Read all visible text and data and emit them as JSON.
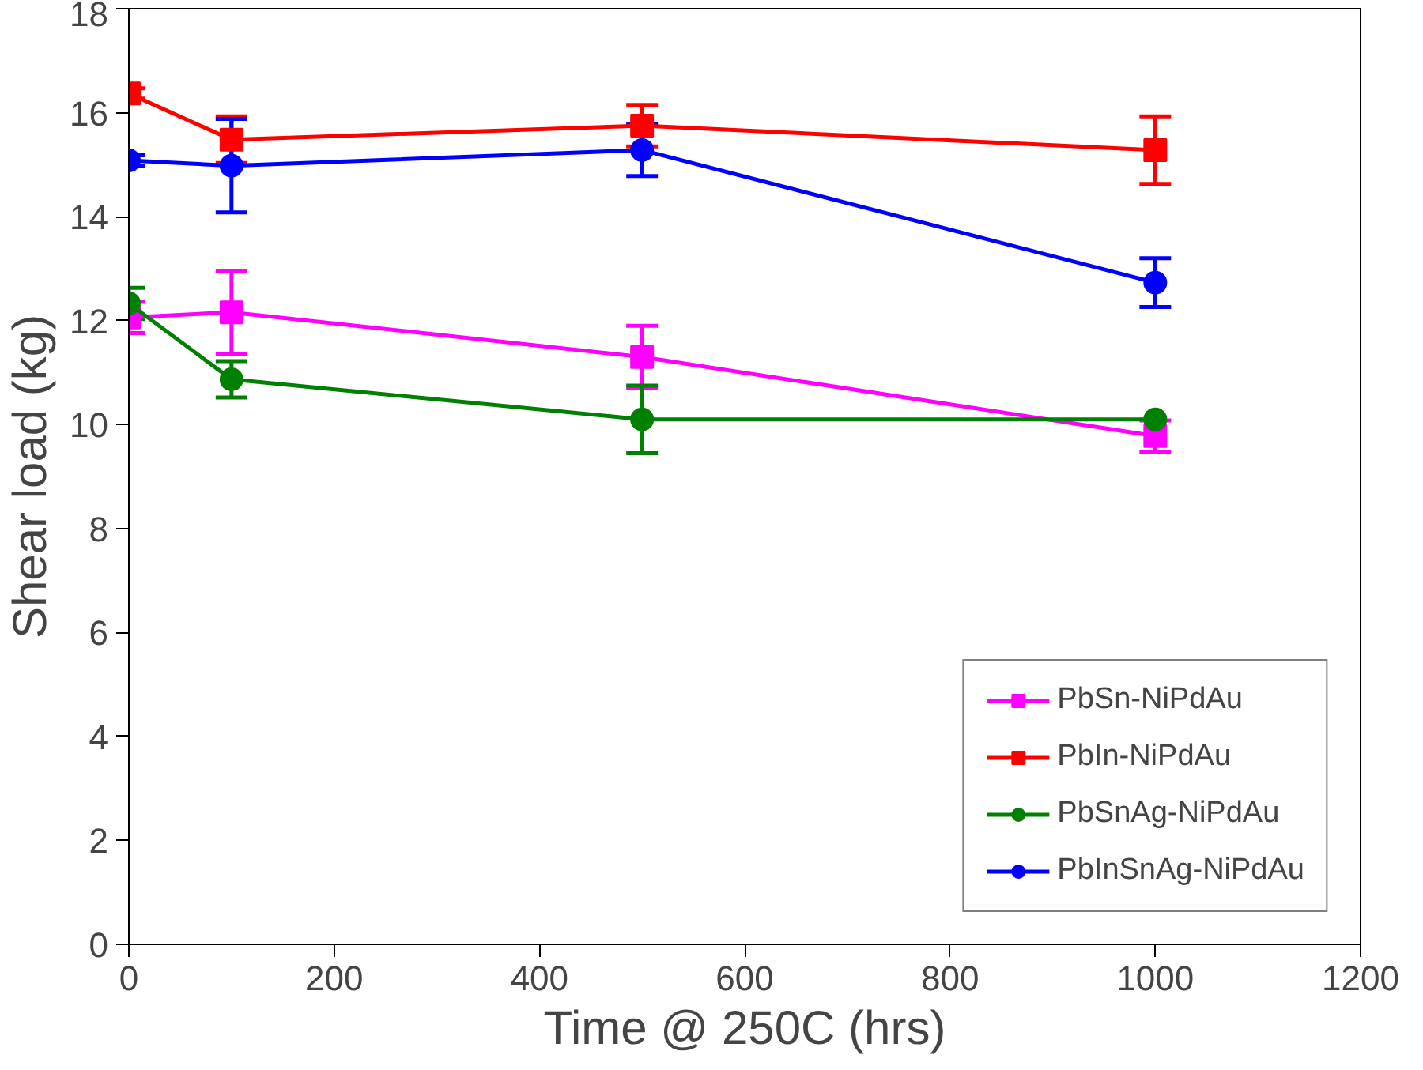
{
  "chart_data": {
    "type": "line",
    "xlabel": "Time @ 250C (hrs)",
    "ylabel": "Shear load (kg)",
    "x": [
      0,
      100,
      500,
      1000
    ],
    "xlim": [
      0,
      1200
    ],
    "xticks": [
      0,
      200,
      400,
      600,
      800,
      1000,
      1200
    ],
    "ylim": [
      0,
      18
    ],
    "yticks": [
      0,
      2,
      4,
      6,
      8,
      10,
      12,
      14,
      16,
      18
    ],
    "grid": false,
    "legend": "bottom right",
    "series": [
      {
        "name": "PbSn-NiPdAu",
        "color": "#ff00ff",
        "marker": "square",
        "values": [
          12.06,
          12.16,
          11.3,
          9.78
        ],
        "errors": [
          0.3,
          0.8,
          0.6,
          0.3
        ]
      },
      {
        "name": "PbIn-NiPdAu",
        "color": "#ff0000",
        "marker": "square",
        "values": [
          16.37,
          15.48,
          15.75,
          15.28
        ],
        "errors": [
          0.1,
          0.45,
          0.4,
          0.65
        ]
      },
      {
        "name": "PbSnAg-NiPdAu",
        "color": "#008000",
        "marker": "circle",
        "values": [
          12.33,
          10.87,
          10.1,
          10.1
        ],
        "errors": [
          0.3,
          0.35,
          0.65,
          null
        ]
      },
      {
        "name": "PbInSnAg-NiPdAu",
        "color": "#0000ff",
        "marker": "circle",
        "values": [
          15.08,
          14.98,
          15.28,
          12.73
        ],
        "errors": [
          0.1,
          0.9,
          0.5,
          0.47
        ]
      }
    ]
  }
}
